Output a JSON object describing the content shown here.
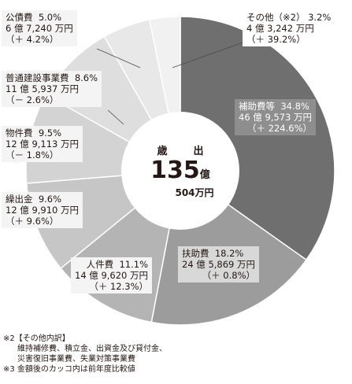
{
  "chart_data": {
    "type": "pie",
    "total": {
      "title": "歳　出",
      "amount": "135",
      "unit1": "億",
      "remainder": "504万円"
    },
    "slices": [
      {
        "name": "補助費等",
        "pct_label": "34.8%",
        "value": 34.8,
        "amount": "46 億 9,573 万円",
        "change": "（＋ 224.6%）",
        "color": "#6f6f6f"
      },
      {
        "name": "扶助費",
        "pct_label": "18.2%",
        "value": 18.2,
        "amount": "24 億 5,869 万円",
        "change": "（＋ 0.8%）",
        "color": "#9c9c9c"
      },
      {
        "name": "人件費",
        "pct_label": "11.1%",
        "value": 11.1,
        "amount": "14 億 9,620 万円",
        "change": "（＋ 12.3%）",
        "color": "#b4b4b4"
      },
      {
        "name": "繰出金",
        "pct_label": "9.6%",
        "value": 9.6,
        "amount": "12 億 9,910 万円",
        "change": "（＋ 9.6%）",
        "color": "#c6c6c6"
      },
      {
        "name": "物件費",
        "pct_label": "9.5%",
        "value": 9.5,
        "amount": "12 億 9,113 万円",
        "change": "（－ 1.8%）",
        "color": "#d3d3d3"
      },
      {
        "name": "普通建設事業費",
        "pct_label": "8.6%",
        "value": 8.6,
        "amount": "11 億 5,937 万円",
        "change": "（－ 2.6%）",
        "color": "#dedede"
      },
      {
        "name": "公債費",
        "pct_label": "5.0%",
        "value": 5.0,
        "amount": "6 億 7,240 万円",
        "change": "（＋ 4.2%）",
        "color": "#e8e8e8"
      },
      {
        "name": "その他（※2）",
        "pct_label": "3.2%",
        "value": 3.2,
        "amount": "4 億 3,242 万円",
        "change": "（＋ 39.2%）",
        "color": "#f1f1f1"
      }
    ]
  },
  "notes": {
    "n2_title": "※2【その他内訳】",
    "n2_line1": "維持補修費、積立金、出資金及び貸付金、",
    "n2_line2": "災害復旧事業費、失業対策事業費",
    "n3": "※3  金額後のカッコ内は前年度比較値"
  }
}
